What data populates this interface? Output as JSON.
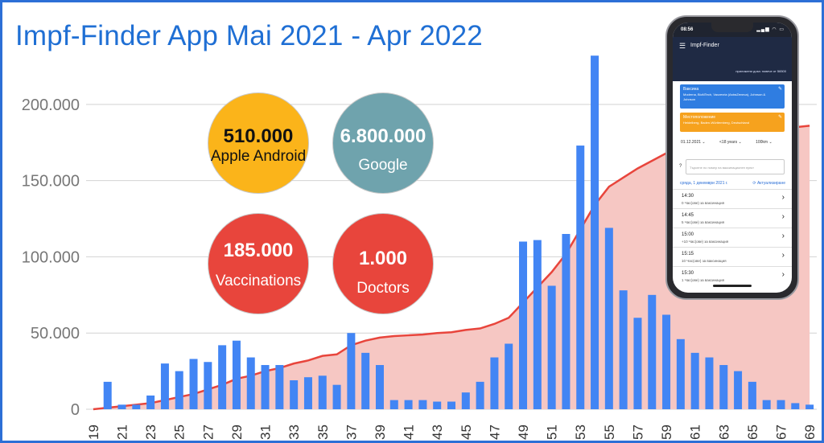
{
  "title": "Impf-Finder App Mai 2021 - Apr 2022",
  "colors": {
    "title": "#1f6fd4",
    "bars": "#4285f4",
    "area_fill": "#f6c7c3",
    "area_line": "#e8453c",
    "frame": "#2c6fd6"
  },
  "bubbles": [
    {
      "value": "510.000",
      "label": "Apple Android",
      "color": "#fbb41a",
      "text_color": "#111111"
    },
    {
      "value": "6.800.000",
      "label": "Google",
      "color": "#6fa3ad",
      "text_color": "#ffffff"
    },
    {
      "value": "185.000",
      "label": "Vaccinations",
      "color": "#e8453c",
      "text_color": "#ffffff"
    },
    {
      "value": "1.000",
      "label": "Doctors",
      "color": "#e8453c",
      "text_color": "#ffffff"
    }
  ],
  "chart_data": {
    "type": "bar",
    "x": [
      19,
      20,
      21,
      22,
      23,
      24,
      25,
      26,
      27,
      28,
      29,
      30,
      31,
      32,
      33,
      34,
      35,
      36,
      37,
      38,
      39,
      40,
      41,
      42,
      43,
      44,
      45,
      46,
      47,
      48,
      49,
      50,
      51,
      52,
      53,
      54,
      55,
      56,
      57,
      58,
      59,
      60,
      61,
      62,
      63,
      64,
      65,
      66,
      67,
      68,
      69
    ],
    "x_tick_labels": [
      "19",
      "21",
      "23",
      "25",
      "27",
      "29",
      "31",
      "33",
      "35",
      "37",
      "39",
      "41",
      "43",
      "45",
      "47",
      "49",
      "51",
      "53",
      "55",
      "57",
      "59",
      "61",
      "63",
      "65",
      "67",
      "69"
    ],
    "y_tick_labels": [
      "0",
      "50.000",
      "100.000",
      "150.000",
      "200.000"
    ],
    "y_ticks": [
      0,
      50000,
      100000,
      150000,
      200000
    ],
    "ylim": [
      0,
      230000
    ],
    "grid": true,
    "series": [
      {
        "type": "bar",
        "values": [
          0,
          18000,
          3000,
          3000,
          9000,
          30000,
          25000,
          33000,
          31000,
          42000,
          45000,
          34000,
          29000,
          29000,
          19000,
          21000,
          22000,
          16000,
          50000,
          37000,
          29000,
          6000,
          6000,
          6000,
          5000,
          5000,
          11000,
          18000,
          34000,
          43000,
          110000,
          111000,
          81000,
          115000,
          173000,
          232000,
          119000,
          78000,
          60000,
          75000,
          62000,
          46000,
          37000,
          34000,
          29000,
          25000,
          18000,
          6000,
          6000,
          4000,
          3000
        ]
      },
      {
        "type": "area",
        "values": [
          0,
          1000,
          2000,
          3000,
          4000,
          6000,
          8000,
          10000,
          13000,
          16000,
          20000,
          22000,
          25000,
          27000,
          30000,
          32000,
          35000,
          36000,
          42000,
          45000,
          47000,
          48000,
          48500,
          49000,
          50000,
          50500,
          52000,
          53000,
          56000,
          60000,
          70000,
          80000,
          90000,
          102000,
          118000,
          134000,
          146000,
          152000,
          158000,
          163000,
          168000,
          172000,
          175000,
          178000,
          180000,
          182000,
          183000,
          184000,
          184500,
          185000,
          186000
        ]
      }
    ]
  },
  "phone": {
    "time": "08:56",
    "status_icons": "▂▄▆ ◠ ▭",
    "app_title": "Impf-Finder",
    "subtitle": "приложени доза: повече от 56500",
    "card1_title": "Ваксина",
    "card1_body": "Moderna, BioNTech, Vaxzevria (AstraZeneca), Johnson & Johnson",
    "card2_title": "Местоположение",
    "card2_body": "Heidelberg, Baden-Württemberg, Deutschland",
    "filter_date": "01.12.2021 ⌄",
    "filter_age": "<18 years ⌄",
    "filter_radius": "100km ⌄",
    "search_placeholder": "Търсене по номер на ваксинационен пункт",
    "date_line": "сряда, 1 декември 2021 г.",
    "refresh_label": "⟳ Актуализиране",
    "slots": [
      {
        "time": "14:30",
        "status": "0 Час(ове) за ваксинация"
      },
      {
        "time": "14:45",
        "status": "5 Час(ове) за ваксинация"
      },
      {
        "time": "15:00",
        "status": "+10 Час(ове) за ваксинация"
      },
      {
        "time": "15:15",
        "status": "10 Час(ове) за ваксинация"
      },
      {
        "time": "15:30",
        "status": "1 Час(ове) за ваксинация"
      }
    ]
  }
}
